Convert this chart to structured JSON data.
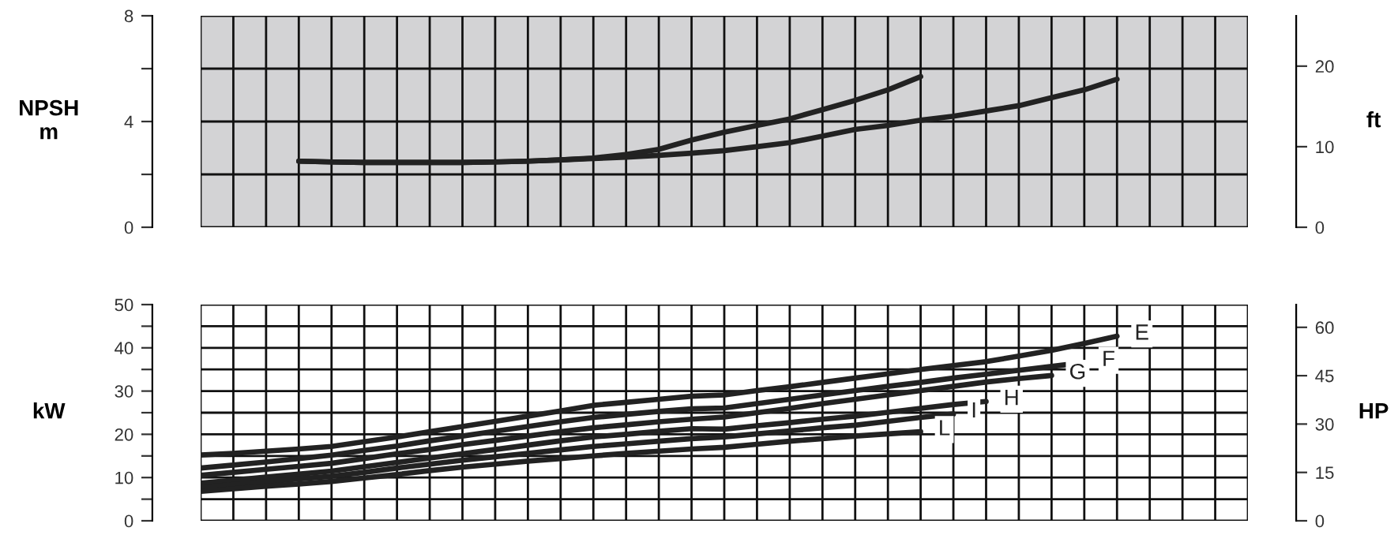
{
  "chart_data": [
    {
      "type": "line",
      "ylabel": "NPSH\nm",
      "y2label": "ft",
      "categories": [
        null,
        null,
        null,
        null,
        null,
        null,
        null,
        null,
        null,
        null,
        null,
        null,
        null,
        null,
        null,
        null,
        null,
        null,
        null,
        null,
        null,
        null,
        null,
        null,
        null,
        null,
        null,
        null,
        null,
        null,
        null,
        null,
        null
      ],
      "series": [
        {
          "color": "#222222",
          "values": [
            null,
            null,
            null,
            2.5,
            2.47,
            2.45,
            2.45,
            2.45,
            2.45,
            2.47,
            2.5,
            2.55,
            2.62,
            2.75,
            2.95,
            3.3,
            3.6,
            3.85,
            4.1,
            4.45,
            4.8,
            5.2,
            5.7,
            null,
            null,
            null,
            null,
            null,
            null,
            null,
            null,
            null,
            null
          ]
        },
        {
          "color": "#222222",
          "values": [
            null,
            null,
            null,
            2.5,
            2.47,
            2.45,
            2.45,
            2.45,
            2.45,
            2.47,
            2.5,
            2.55,
            2.6,
            2.65,
            2.72,
            2.8,
            2.9,
            3.05,
            3.2,
            3.45,
            3.7,
            3.85,
            4.05,
            4.2,
            4.4,
            4.6,
            4.9,
            5.2,
            5.6,
            null,
            null,
            null,
            null
          ]
        }
      ],
      "ylim": [
        0,
        8
      ],
      "yticks": [
        0,
        {
          "value": 2,
          "label": null
        },
        4,
        {
          "value": 6,
          "label": null
        },
        8
      ],
      "y2lim": [
        0,
        26.25
      ],
      "y2ticks": [
        0,
        10,
        20
      ],
      "grid": true,
      "legend": false
    },
    {
      "type": "line",
      "ylabel": "kW",
      "y2label": "HP",
      "categories": [
        null,
        null,
        null,
        null,
        null,
        null,
        null,
        null,
        null,
        null,
        null,
        null,
        null,
        null,
        null,
        null,
        null,
        null,
        null,
        null,
        null,
        null,
        null,
        null,
        null,
        null,
        null,
        null,
        null,
        null,
        null,
        null,
        null
      ],
      "series": [
        {
          "name": "E",
          "color": "#222222",
          "values": [
            15.2,
            15.6,
            16.1,
            16.6,
            17.2,
            18.3,
            19.4,
            20.6,
            21.8,
            23.0,
            24.2,
            25.4,
            26.7,
            27.4,
            28.1,
            28.8,
            29.1,
            30.1,
            31.0,
            32.0,
            33.0,
            34.0,
            35.0,
            35.9,
            36.8,
            38.1,
            39.4,
            41.0,
            42.7,
            null,
            null,
            null,
            null
          ]
        },
        {
          "name": "F",
          "color": "#222222",
          "values": [
            12.2,
            12.9,
            13.6,
            14.4,
            15.2,
            16.3,
            17.3,
            18.5,
            19.6,
            20.7,
            21.8,
            22.9,
            23.9,
            24.6,
            25.3,
            25.9,
            26.1,
            27.1,
            28.1,
            29.1,
            30.1,
            31.1,
            32.0,
            33.0,
            33.9,
            34.8,
            35.7,
            36.6,
            null,
            null,
            null,
            null,
            null
          ]
        },
        {
          "name": "G",
          "color": "#222222",
          "values": [
            10.5,
            11.2,
            11.9,
            12.6,
            13.3,
            14.4,
            15.5,
            16.5,
            17.6,
            18.6,
            19.6,
            20.6,
            21.5,
            22.2,
            22.9,
            23.5,
            24.0,
            25.0,
            26.0,
            27.1,
            28.1,
            29.1,
            30.1,
            31.1,
            32.1,
            32.9,
            33.6,
            null,
            null,
            null,
            null,
            null,
            null
          ]
        },
        {
          "name": "H",
          "color": "#222222",
          "values": [
            8.7,
            9.4,
            10.1,
            10.8,
            11.5,
            12.5,
            13.5,
            14.5,
            15.5,
            16.5,
            17.5,
            18.5,
            19.4,
            20.0,
            20.7,
            21.3,
            21.2,
            22.0,
            22.7,
            23.5,
            24.2,
            25.1,
            26.0,
            26.9,
            27.6,
            null,
            null,
            null,
            null,
            null,
            null,
            null,
            null
          ]
        },
        {
          "name": "I",
          "color": "#222222",
          "values": [
            7.7,
            8.4,
            9.0,
            9.7,
            10.3,
            11.2,
            12.2,
            13.1,
            14.0,
            14.8,
            15.6,
            16.4,
            17.2,
            17.8,
            18.4,
            19.0,
            19.4,
            20.1,
            20.8,
            21.5,
            22.1,
            23.0,
            23.9,
            24.7,
            null,
            null,
            null,
            null,
            null,
            null,
            null,
            null,
            null
          ]
        },
        {
          "name": "L",
          "color": "#222222",
          "values": [
            6.8,
            7.4,
            8.0,
            8.5,
            9.1,
            9.9,
            10.7,
            11.6,
            12.4,
            13.1,
            13.8,
            14.4,
            15.0,
            15.6,
            16.1,
            16.6,
            17.0,
            17.7,
            18.4,
            19.0,
            19.6,
            20.1,
            20.6,
            null,
            null,
            null,
            null,
            null,
            null,
            null,
            null,
            null,
            null
          ]
        }
      ],
      "ylim": [
        0,
        50
      ],
      "yticks": [
        0,
        {
          "value": 5,
          "label": null
        },
        10,
        {
          "value": 15,
          "label": null
        },
        20,
        {
          "value": 25,
          "label": null
        },
        30,
        {
          "value": 35,
          "label": null
        },
        40,
        {
          "value": 45,
          "label": null
        },
        50
      ],
      "y2lim": [
        0,
        67.05
      ],
      "y2ticks": [
        0,
        15,
        30,
        45,
        60
      ],
      "grid": true,
      "legend": false
    }
  ]
}
